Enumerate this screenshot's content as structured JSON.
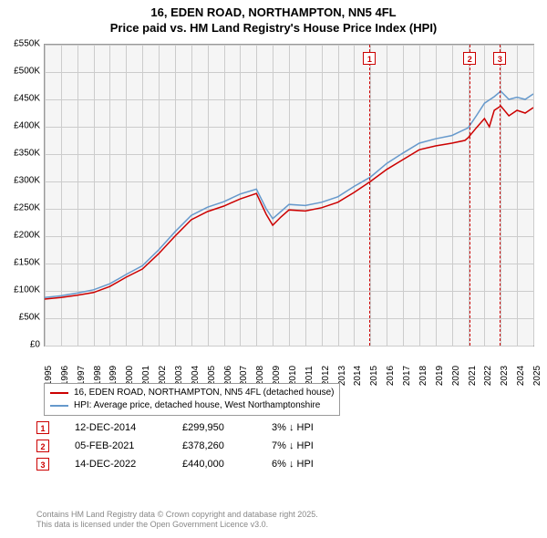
{
  "title_line1": "16, EDEN ROAD, NORTHAMPTON, NN5 4FL",
  "title_line2": "Price paid vs. HM Land Registry's House Price Index (HPI)",
  "chart": {
    "type": "line",
    "background_color": "#f5f5f5",
    "grid_color": "#cccccc",
    "border_color": "#999999",
    "ylim": [
      0,
      550
    ],
    "ytick_step": 50,
    "ytick_labels": [
      "£0",
      "£50K",
      "£100K",
      "£150K",
      "£200K",
      "£250K",
      "£300K",
      "£350K",
      "£400K",
      "£450K",
      "£500K",
      "£550K"
    ],
    "xlim": [
      1995,
      2025
    ],
    "xtick_labels": [
      "1995",
      "1996",
      "1997",
      "1998",
      "1999",
      "2000",
      "2001",
      "2002",
      "2003",
      "2004",
      "2005",
      "2006",
      "2007",
      "2008",
      "2009",
      "2010",
      "2011",
      "2012",
      "2013",
      "2014",
      "2015",
      "2016",
      "2017",
      "2018",
      "2019",
      "2020",
      "2021",
      "2022",
      "2023",
      "2024",
      "2025"
    ],
    "series": [
      {
        "name": "price_paid",
        "label": "16, EDEN ROAD, NORTHAMPTON, NN5 4FL (detached house)",
        "color": "#cc0000",
        "line_width": 1.5,
        "points": [
          [
            1995,
            85
          ],
          [
            1996,
            88
          ],
          [
            1997,
            92
          ],
          [
            1998,
            97
          ],
          [
            1999,
            108
          ],
          [
            2000,
            125
          ],
          [
            2001,
            140
          ],
          [
            2002,
            168
          ],
          [
            2003,
            200
          ],
          [
            2004,
            230
          ],
          [
            2005,
            245
          ],
          [
            2006,
            255
          ],
          [
            2007,
            268
          ],
          [
            2008,
            278
          ],
          [
            2008.6,
            240
          ],
          [
            2009,
            220
          ],
          [
            2009.5,
            235
          ],
          [
            2010,
            248
          ],
          [
            2011,
            246
          ],
          [
            2012,
            252
          ],
          [
            2013,
            262
          ],
          [
            2014,
            280
          ],
          [
            2015,
            300
          ],
          [
            2016,
            322
          ],
          [
            2017,
            340
          ],
          [
            2018,
            358
          ],
          [
            2019,
            365
          ],
          [
            2020,
            370
          ],
          [
            2020.8,
            375
          ],
          [
            2021,
            380
          ],
          [
            2021.5,
            398
          ],
          [
            2022,
            415
          ],
          [
            2022.3,
            400
          ],
          [
            2022.6,
            430
          ],
          [
            2023,
            438
          ],
          [
            2023.5,
            420
          ],
          [
            2024,
            430
          ],
          [
            2024.5,
            425
          ],
          [
            2025,
            435
          ]
        ]
      },
      {
        "name": "hpi",
        "label": "HPI: Average price, detached house, West Northamptonshire",
        "color": "#6699cc",
        "line_width": 1.5,
        "points": [
          [
            1995,
            88
          ],
          [
            1996,
            91
          ],
          [
            1997,
            96
          ],
          [
            1998,
            102
          ],
          [
            1999,
            113
          ],
          [
            2000,
            130
          ],
          [
            2001,
            146
          ],
          [
            2002,
            175
          ],
          [
            2003,
            208
          ],
          [
            2004,
            238
          ],
          [
            2005,
            253
          ],
          [
            2006,
            263
          ],
          [
            2007,
            277
          ],
          [
            2008,
            286
          ],
          [
            2008.6,
            250
          ],
          [
            2009,
            232
          ],
          [
            2009.5,
            245
          ],
          [
            2010,
            258
          ],
          [
            2011,
            256
          ],
          [
            2012,
            262
          ],
          [
            2013,
            272
          ],
          [
            2014,
            291
          ],
          [
            2015,
            308
          ],
          [
            2016,
            333
          ],
          [
            2017,
            352
          ],
          [
            2018,
            370
          ],
          [
            2019,
            378
          ],
          [
            2020,
            384
          ],
          [
            2021,
            398
          ],
          [
            2021.5,
            420
          ],
          [
            2022,
            443
          ],
          [
            2022.6,
            455
          ],
          [
            2023,
            465
          ],
          [
            2023.5,
            450
          ],
          [
            2024,
            454
          ],
          [
            2024.5,
            450
          ],
          [
            2025,
            460
          ]
        ]
      }
    ],
    "markers": [
      {
        "num": "1",
        "x": 2014.95
      },
      {
        "num": "2",
        "x": 2021.1
      },
      {
        "num": "3",
        "x": 2022.95
      }
    ]
  },
  "legend": {
    "items": [
      {
        "color": "#cc0000",
        "label": "16, EDEN ROAD, NORTHAMPTON, NN5 4FL (detached house)"
      },
      {
        "color": "#6699cc",
        "label": "HPI: Average price, detached house, West Northamptonshire"
      }
    ]
  },
  "marker_rows": [
    {
      "num": "1",
      "date": "12-DEC-2014",
      "price": "£299,950",
      "diff": "3% ↓ HPI"
    },
    {
      "num": "2",
      "date": "05-FEB-2021",
      "price": "£378,260",
      "diff": "7% ↓ HPI"
    },
    {
      "num": "3",
      "date": "14-DEC-2022",
      "price": "£440,000",
      "diff": "6% ↓ HPI"
    }
  ],
  "footer_line1": "Contains HM Land Registry data © Crown copyright and database right 2025.",
  "footer_line2": "This data is licensed under the Open Government Licence v3.0.",
  "colors": {
    "marker_border": "#cc0000",
    "marker_bg": "#ffffff",
    "text": "#000000",
    "footer_text": "#888888"
  },
  "fonts": {
    "title_size": 13,
    "axis_size": 10,
    "legend_size": 10,
    "table_size": 11,
    "footer_size": 9
  }
}
